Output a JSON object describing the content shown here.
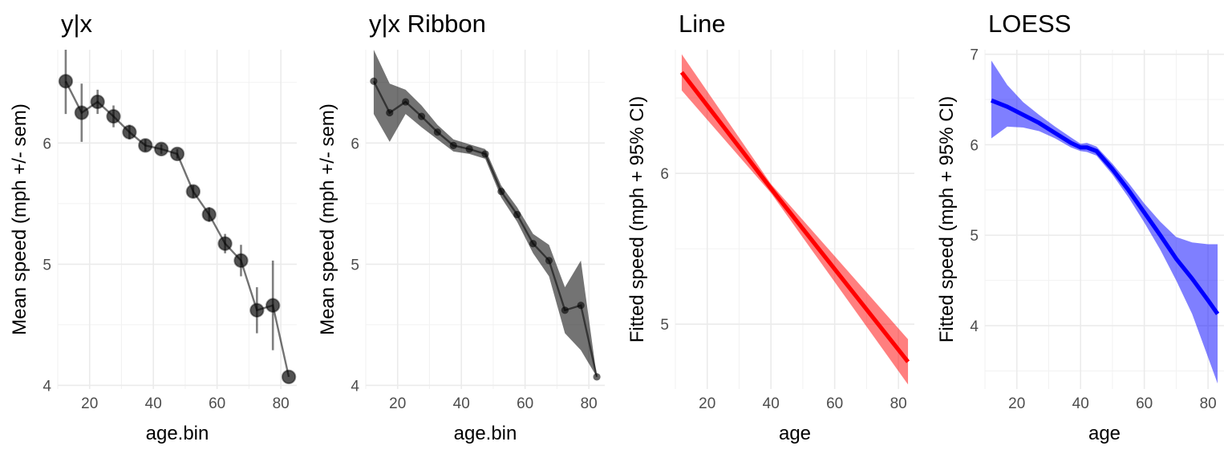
{
  "chart_data": [
    {
      "type": "line",
      "title": "y|x",
      "xlabel": "age.bin",
      "ylabel": "Mean speed (mph +/- sem)",
      "xlim": [
        10,
        85
      ],
      "ylim": [
        3.97,
        6.77
      ],
      "xticks": [
        20,
        40,
        60,
        80
      ],
      "yticks": [
        4,
        5,
        6
      ],
      "style": "points-errorbars",
      "color": "#000000",
      "x": [
        12.5,
        17.5,
        22.5,
        27.5,
        32.5,
        37.5,
        42.5,
        47.5,
        52.5,
        57.5,
        62.5,
        67.5,
        72.5,
        77.5,
        82.5
      ],
      "y": [
        6.51,
        6.25,
        6.34,
        6.22,
        6.09,
        5.98,
        5.95,
        5.91,
        5.6,
        5.41,
        5.17,
        5.03,
        4.62,
        4.66,
        4.07
      ],
      "lower": [
        6.24,
        6.01,
        6.24,
        6.13,
        6.03,
        5.93,
        5.91,
        5.87,
        5.55,
        5.35,
        5.09,
        4.9,
        4.43,
        4.29,
        4.07
      ],
      "upper": [
        6.77,
        6.49,
        6.44,
        6.31,
        6.15,
        6.03,
        5.99,
        5.95,
        5.65,
        5.47,
        5.25,
        5.16,
        4.81,
        5.03,
        4.07
      ]
    },
    {
      "type": "area",
      "title": "y|x Ribbon",
      "xlabel": "age.bin",
      "ylabel": "Mean speed (mph +/- sem)",
      "xlim": [
        10,
        85
      ],
      "ylim": [
        3.97,
        6.77
      ],
      "xticks": [
        20,
        40,
        60,
        80
      ],
      "yticks": [
        4,
        5,
        6
      ],
      "style": "ribbon-line-points",
      "color": "#000000",
      "x": [
        12.5,
        17.5,
        22.5,
        27.5,
        32.5,
        37.5,
        42.5,
        47.5,
        52.5,
        57.5,
        62.5,
        67.5,
        72.5,
        77.5,
        82.5
      ],
      "y": [
        6.51,
        6.25,
        6.34,
        6.22,
        6.09,
        5.98,
        5.95,
        5.91,
        5.6,
        5.41,
        5.17,
        5.03,
        4.62,
        4.66,
        4.07
      ],
      "lower": [
        6.24,
        6.01,
        6.24,
        6.13,
        6.03,
        5.93,
        5.91,
        5.87,
        5.55,
        5.35,
        5.09,
        4.9,
        4.43,
        4.29,
        4.07
      ],
      "upper": [
        6.77,
        6.49,
        6.44,
        6.31,
        6.15,
        6.03,
        5.99,
        5.95,
        5.65,
        5.47,
        5.25,
        5.16,
        4.81,
        5.03,
        4.07
      ]
    },
    {
      "type": "line",
      "title": "Line",
      "xlabel": "age",
      "ylabel": "Fitted speed (mph + 95% CI)",
      "xlim": [
        10,
        85
      ],
      "ylim": [
        4.57,
        6.82
      ],
      "xticks": [
        20,
        40,
        60,
        80
      ],
      "yticks": [
        5,
        6
      ],
      "style": "fit-ribbon",
      "color": "#ff0000",
      "x": [
        12,
        40,
        83
      ],
      "y": [
        6.67,
        5.9,
        4.75
      ],
      "lower": [
        6.55,
        5.87,
        4.6
      ],
      "upper": [
        6.79,
        5.93,
        4.9
      ]
    },
    {
      "type": "line",
      "title": "LOESS",
      "xlabel": "age",
      "ylabel": "Fitted speed (mph + 95% CI)",
      "xlim": [
        10,
        85
      ],
      "ylim": [
        3.3,
        7.05
      ],
      "xticks": [
        20,
        40,
        60,
        80
      ],
      "yticks": [
        4,
        5,
        6,
        7
      ],
      "style": "fit-ribbon",
      "color": "#0000ff",
      "x": [
        12,
        17,
        22,
        27,
        32,
        37,
        40,
        42,
        45,
        50,
        55,
        60,
        65,
        70,
        75,
        80,
        83
      ],
      "y": [
        6.49,
        6.42,
        6.33,
        6.24,
        6.13,
        6.02,
        5.97,
        5.97,
        5.93,
        5.73,
        5.5,
        5.25,
        5.0,
        4.74,
        4.52,
        4.28,
        4.13
      ],
      "lower": [
        6.07,
        6.2,
        6.19,
        6.15,
        6.07,
        5.97,
        5.93,
        5.92,
        5.88,
        5.67,
        5.42,
        5.14,
        4.84,
        4.5,
        4.13,
        3.65,
        3.36
      ],
      "upper": [
        6.93,
        6.66,
        6.47,
        6.33,
        6.2,
        6.08,
        6.01,
        6.02,
        5.98,
        5.79,
        5.58,
        5.35,
        5.15,
        4.98,
        4.92,
        4.9,
        4.9
      ]
    }
  ]
}
